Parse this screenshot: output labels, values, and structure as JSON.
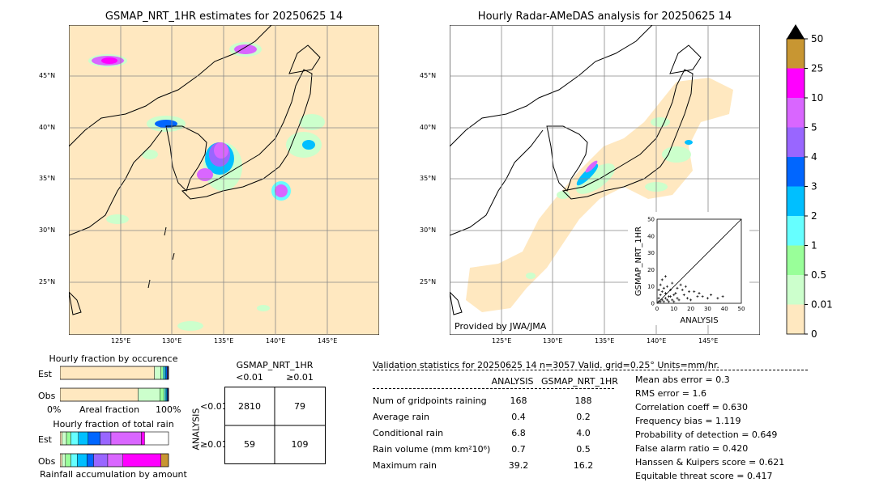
{
  "maps": [
    {
      "title": "GSMAP_NRT_1HR estimates for 20250625 14",
      "lat_labels": [
        "45°N",
        "40°N",
        "35°N",
        "30°N",
        "25°N"
      ],
      "lon_labels": [
        "125°E",
        "130°E",
        "135°E",
        "140°E",
        "145°E"
      ]
    },
    {
      "title": "Hourly Radar-AMeDAS analysis for 20250625 14",
      "lat_labels": [
        "45°N",
        "40°N",
        "35°N",
        "30°N",
        "25°N"
      ],
      "lon_labels": [
        "125°E",
        "130°E",
        "135°E",
        "140°E",
        "145°E"
      ],
      "credit": "Provided by JWA/JMA"
    }
  ],
  "colorbar": {
    "levels": [
      "50",
      "25",
      "10",
      "5",
      "4",
      "3",
      "2",
      "1",
      "0.5",
      "0.01",
      "0"
    ],
    "colors": [
      "#c89632",
      "#ff00ff",
      "#d966ff",
      "#9966ff",
      "#0066ff",
      "#00bfff",
      "#66ffff",
      "#99ff99",
      "#ccffcc",
      "#ffe8c0"
    ]
  },
  "chart_data": [
    {
      "type": "scatter",
      "xlabel": "ANALYSIS",
      "ylabel": "GSMAP_NRT_1HR",
      "xlim": [
        0,
        50
      ],
      "ylim": [
        0,
        50
      ],
      "ticks": [
        "0",
        "10",
        "20",
        "30",
        "40",
        "50"
      ],
      "points": [
        [
          1,
          1
        ],
        [
          2,
          1
        ],
        [
          3,
          2
        ],
        [
          4,
          1
        ],
        [
          5,
          3
        ],
        [
          6,
          2
        ],
        [
          7,
          1
        ],
        [
          8,
          4
        ],
        [
          9,
          2
        ],
        [
          10,
          1
        ],
        [
          11,
          6
        ],
        [
          12,
          3
        ],
        [
          13,
          2
        ],
        [
          15,
          8
        ],
        [
          16,
          5
        ],
        [
          18,
          3
        ],
        [
          20,
          2
        ],
        [
          22,
          7
        ],
        [
          25,
          6
        ],
        [
          27,
          4
        ],
        [
          30,
          3
        ],
        [
          32,
          5
        ],
        [
          36,
          3
        ],
        [
          39,
          4
        ],
        [
          2,
          5
        ],
        [
          3,
          7
        ],
        [
          1,
          3
        ],
        [
          4,
          9
        ],
        [
          5,
          6
        ],
        [
          6,
          10
        ],
        [
          7,
          4
        ],
        [
          8,
          8
        ],
        [
          9,
          12
        ],
        [
          10,
          5
        ],
        [
          12,
          9
        ],
        [
          14,
          11
        ],
        [
          17,
          10
        ],
        [
          19,
          7
        ],
        [
          24,
          4
        ],
        [
          1,
          8
        ],
        [
          2,
          11
        ],
        [
          3,
          14
        ],
        [
          5,
          16
        ]
      ]
    },
    {
      "type": "bar",
      "title": "Hourly fraction by occurence",
      "categories": [
        "Est",
        "Obs"
      ],
      "xlabel": "Areal fraction",
      "x_ticks": [
        "0%",
        "100%"
      ],
      "series_colors": [
        "#ffe8c0",
        "#ccffcc",
        "#99ff99",
        "#66ffff",
        "#00bfff",
        "#0066ff",
        "#9966ff",
        "#d966ff",
        "#ff00ff",
        "#c89632"
      ],
      "values": [
        [
          0.87,
          0.06,
          0.02,
          0.015,
          0.012,
          0.01,
          0.006,
          0.004,
          0.002,
          0.001
        ],
        [
          0.72,
          0.2,
          0.04,
          0.015,
          0.01,
          0.007,
          0.004,
          0.003,
          0.001,
          0.0
        ]
      ]
    },
    {
      "type": "bar",
      "title": "Hourly fraction of total rain",
      "categories": [
        "Est",
        "Obs"
      ],
      "xlabel": "Rainfall accumulation by amount",
      "series_colors": [
        "#ffe8c0",
        "#ccffcc",
        "#99ff99",
        "#66ffff",
        "#00bfff",
        "#0066ff",
        "#9966ff",
        "#d966ff",
        "#ff00ff",
        "#c89632"
      ],
      "values": [
        [
          0.02,
          0.04,
          0.04,
          0.07,
          0.09,
          0.11,
          0.1,
          0.28,
          0.03,
          0.0
        ],
        [
          0.02,
          0.03,
          0.05,
          0.06,
          0.09,
          0.06,
          0.13,
          0.14,
          0.35,
          0.07
        ]
      ]
    }
  ],
  "contingency": {
    "title": "GSMAP_NRT_1HR",
    "col_labels": [
      "<0.01",
      "≥0.01"
    ],
    "row_labels": [
      "<0.01",
      "≥0.01"
    ],
    "row_axis": "ANALYSIS",
    "cells": [
      [
        "2810",
        "79"
      ],
      [
        "59",
        "109"
      ]
    ]
  },
  "validation": {
    "header": "Validation statistics for 20250625 14  n=3057 Valid. grid=0.25° Units=mm/hr.",
    "col_analysis": "ANALYSIS",
    "col_gsmap": "GSMAP_NRT_1HR",
    "rows": [
      {
        "label": "Num of gridpoints raining",
        "a": "168",
        "g": "188"
      },
      {
        "label": "Average rain",
        "a": "0.4",
        "g": "0.2"
      },
      {
        "label": "Conditional rain",
        "a": "6.8",
        "g": "4.0"
      },
      {
        "label": "Rain volume (mm km²10⁶)",
        "a": "0.7",
        "g": "0.5"
      },
      {
        "label": "Maximum rain",
        "a": "39.2",
        "g": "16.2"
      }
    ],
    "scores": [
      "Mean abs error =    0.3",
      "RMS error =    1.6",
      "Correlation coeff =  0.630",
      "Frequency bias =  1.119",
      "Probability of detection =  0.649",
      "False alarm ratio =  0.420",
      "Hanssen & Kuipers score =  0.621",
      "Equitable threat score =  0.417"
    ]
  }
}
